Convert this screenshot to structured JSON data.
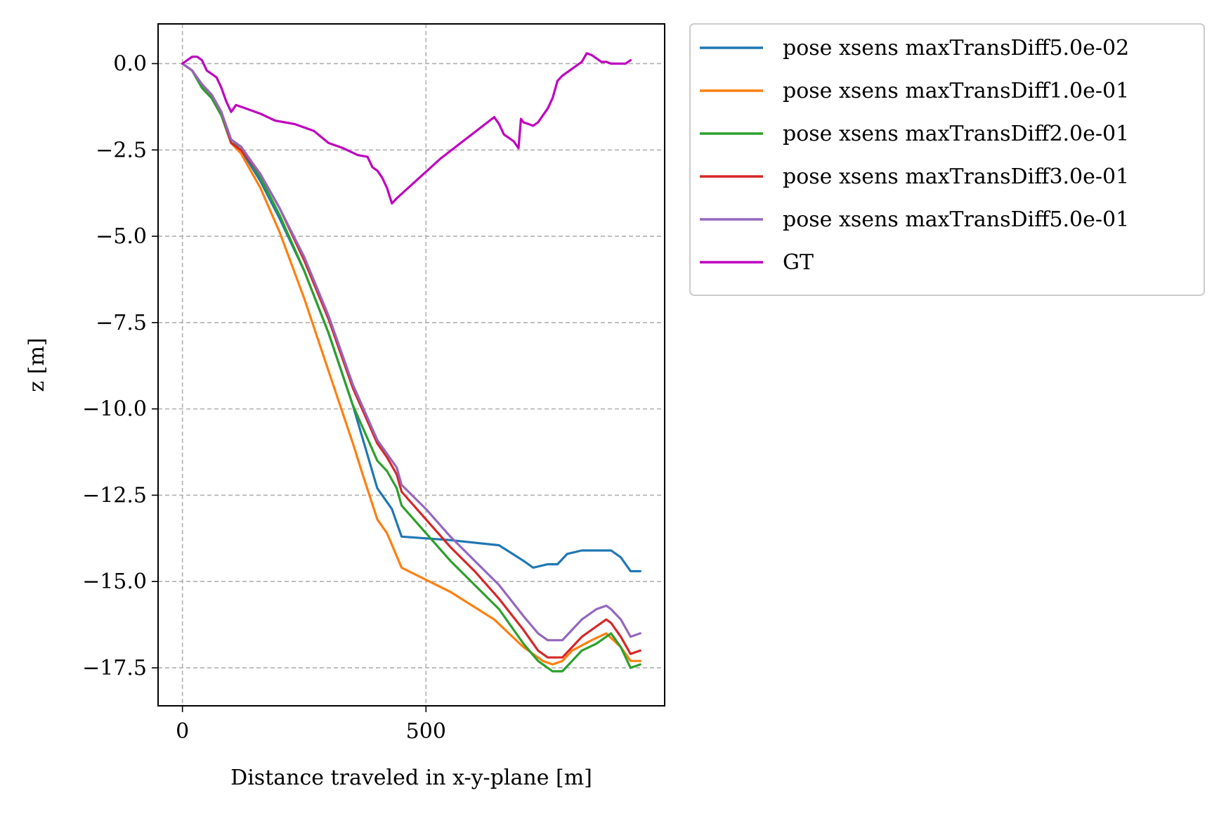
{
  "chart_data": {
    "type": "line",
    "xlabel": "Distance traveled in x-y-plane [m]",
    "ylabel": "z [m]",
    "xlim": [
      -50,
      990
    ],
    "ylim": [
      -18.6,
      1.15
    ],
    "xticks": [
      0,
      500
    ],
    "xtick_labels": [
      "0",
      "500"
    ],
    "yticks": [
      0.0,
      -2.5,
      -5.0,
      -7.5,
      -10.0,
      -12.5,
      -15.0,
      -17.5
    ],
    "ytick_labels": [
      "0.0",
      "−2.5",
      "−5.0",
      "−7.5",
      "−10.0",
      "−12.5",
      "−15.0",
      "−17.5"
    ],
    "grid": true,
    "legend_position": "outside-upper-right",
    "series": [
      {
        "name": "pose xsens maxTransDiff5.0e-02",
        "color": "#1f77b4",
        "x": [
          0,
          20,
          40,
          60,
          80,
          100,
          120,
          160,
          200,
          250,
          300,
          350,
          400,
          430,
          450,
          550,
          650,
          700,
          720,
          750,
          770,
          790,
          820,
          860,
          880,
          900,
          920,
          940
        ],
        "y": [
          0,
          -0.2,
          -0.7,
          -1.0,
          -1.5,
          -2.3,
          -2.5,
          -3.4,
          -4.5,
          -6.0,
          -7.8,
          -9.9,
          -12.3,
          -12.9,
          -13.7,
          -13.8,
          -13.95,
          -14.4,
          -14.6,
          -14.5,
          -14.5,
          -14.2,
          -14.1,
          -14.1,
          -14.1,
          -14.3,
          -14.7,
          -14.7
        ]
      },
      {
        "name": "pose xsens maxTransDiff1.0e-01",
        "color": "#ff7f0e",
        "x": [
          0,
          20,
          40,
          60,
          80,
          100,
          120,
          160,
          200,
          250,
          300,
          350,
          370,
          400,
          420,
          450,
          550,
          640,
          700,
          740,
          760,
          780,
          800,
          840,
          870,
          900,
          920,
          940
        ],
        "y": [
          0,
          -0.2,
          -0.6,
          -1.0,
          -1.5,
          -2.3,
          -2.6,
          -3.6,
          -4.9,
          -6.8,
          -8.9,
          -11.0,
          -11.9,
          -13.2,
          -13.6,
          -14.6,
          -15.3,
          -16.1,
          -16.9,
          -17.3,
          -17.4,
          -17.3,
          -17.0,
          -16.7,
          -16.5,
          -16.9,
          -17.3,
          -17.3
        ]
      },
      {
        "name": "pose xsens maxTransDiff2.0e-01",
        "color": "#2ca02c",
        "x": [
          0,
          20,
          40,
          60,
          80,
          100,
          120,
          160,
          200,
          250,
          300,
          350,
          400,
          420,
          440,
          450,
          500,
          550,
          600,
          650,
          700,
          730,
          760,
          780,
          800,
          820,
          850,
          870,
          880,
          900,
          920,
          940
        ],
        "y": [
          0,
          -0.2,
          -0.7,
          -1.0,
          -1.5,
          -2.3,
          -2.4,
          -3.3,
          -4.4,
          -6.0,
          -7.8,
          -9.9,
          -11.5,
          -11.8,
          -12.3,
          -12.8,
          -13.6,
          -14.4,
          -15.1,
          -15.8,
          -16.8,
          -17.3,
          -17.6,
          -17.6,
          -17.3,
          -17.0,
          -16.8,
          -16.6,
          -16.5,
          -16.9,
          -17.5,
          -17.4
        ]
      },
      {
        "name": "pose xsens maxTransDiff3.0e-01",
        "color": "#d62728",
        "x": [
          0,
          20,
          40,
          60,
          80,
          100,
          120,
          160,
          200,
          250,
          300,
          350,
          400,
          420,
          440,
          450,
          500,
          550,
          600,
          650,
          700,
          730,
          750,
          780,
          800,
          820,
          850,
          870,
          880,
          900,
          920,
          940
        ],
        "y": [
          0,
          -0.2,
          -0.6,
          -0.9,
          -1.4,
          -2.3,
          -2.5,
          -3.2,
          -4.2,
          -5.7,
          -7.4,
          -9.4,
          -11.0,
          -11.4,
          -11.9,
          -12.4,
          -13.2,
          -14.0,
          -14.7,
          -15.5,
          -16.4,
          -17.0,
          -17.2,
          -17.2,
          -16.9,
          -16.6,
          -16.3,
          -16.1,
          -16.2,
          -16.6,
          -17.1,
          -17.0
        ]
      },
      {
        "name": "pose xsens maxTransDiff5.0e-01",
        "color": "#9467bd",
        "x": [
          0,
          20,
          40,
          60,
          80,
          100,
          120,
          160,
          200,
          250,
          300,
          350,
          400,
          420,
          440,
          450,
          500,
          550,
          600,
          650,
          700,
          730,
          750,
          780,
          800,
          820,
          850,
          870,
          880,
          900,
          920,
          940
        ],
        "y": [
          0,
          -0.2,
          -0.6,
          -0.9,
          -1.4,
          -2.2,
          -2.4,
          -3.2,
          -4.2,
          -5.6,
          -7.3,
          -9.3,
          -10.9,
          -11.3,
          -11.7,
          -12.2,
          -12.9,
          -13.7,
          -14.4,
          -15.1,
          -16.0,
          -16.5,
          -16.7,
          -16.7,
          -16.4,
          -16.1,
          -15.8,
          -15.7,
          -15.8,
          -16.1,
          -16.6,
          -16.5
        ]
      },
      {
        "name": "GT",
        "color": "#bf00bf",
        "x": [
          0,
          10,
          20,
          30,
          40,
          50,
          60,
          70,
          80,
          90,
          100,
          110,
          130,
          160,
          190,
          230,
          270,
          300,
          330,
          360,
          380,
          390,
          400,
          410,
          420,
          430,
          440,
          530,
          640,
          650,
          660,
          680,
          690,
          695,
          700,
          710,
          720,
          730,
          740,
          750,
          760,
          770,
          780,
          800,
          820,
          830,
          840,
          850,
          860,
          870,
          880,
          890,
          900,
          910,
          920
        ],
        "y": [
          0,
          0.1,
          0.2,
          0.2,
          0.1,
          -0.2,
          -0.3,
          -0.4,
          -0.7,
          -1.1,
          -1.4,
          -1.2,
          -1.3,
          -1.45,
          -1.65,
          -1.75,
          -1.95,
          -2.3,
          -2.45,
          -2.65,
          -2.7,
          -3.0,
          -3.1,
          -3.3,
          -3.6,
          -4.05,
          -3.9,
          -2.75,
          -1.55,
          -1.75,
          -2.05,
          -2.25,
          -2.45,
          -1.6,
          -1.7,
          -1.75,
          -1.8,
          -1.7,
          -1.5,
          -1.3,
          -1.0,
          -0.5,
          -0.35,
          -0.15,
          0.05,
          0.3,
          0.25,
          0.15,
          0.05,
          0.05,
          0.0,
          0.0,
          0.0,
          0.0,
          0.1
        ]
      }
    ]
  }
}
